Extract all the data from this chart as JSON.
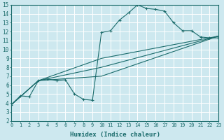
{
  "xlabel": "Humidex (Indice chaleur)",
  "bg_color": "#cde8ef",
  "line_color": "#1a6b6b",
  "grid_color": "#ffffff",
  "xlim": [
    0,
    23
  ],
  "ylim": [
    2,
    15
  ],
  "xticks": [
    0,
    1,
    2,
    3,
    4,
    5,
    6,
    7,
    8,
    9,
    10,
    11,
    12,
    13,
    14,
    15,
    16,
    17,
    18,
    19,
    20,
    21,
    22,
    23
  ],
  "yticks": [
    2,
    3,
    4,
    5,
    6,
    7,
    8,
    9,
    10,
    11,
    12,
    13,
    14,
    15
  ],
  "main_x": [
    0,
    1,
    2,
    3,
    4,
    5,
    6,
    7,
    8,
    9,
    10,
    11,
    12,
    13,
    14,
    15,
    16,
    17,
    18,
    19,
    20,
    21,
    22,
    23
  ],
  "main_y": [
    3.8,
    4.8,
    4.7,
    6.5,
    6.7,
    6.5,
    6.6,
    5.0,
    4.4,
    4.3,
    11.9,
    12.1,
    13.3,
    14.1,
    15.0,
    14.6,
    14.5,
    14.3,
    13.0,
    12.1,
    12.1,
    11.4,
    11.3,
    11.3
  ],
  "line2_x": [
    0,
    3,
    10,
    23
  ],
  "line2_y": [
    3.8,
    6.5,
    9.0,
    11.5
  ],
  "line3_x": [
    0,
    3,
    10,
    23
  ],
  "line3_y": [
    3.8,
    6.5,
    8.0,
    11.5
  ],
  "line4_x": [
    0,
    3,
    10,
    23
  ],
  "line4_y": [
    3.8,
    6.5,
    7.0,
    11.5
  ]
}
